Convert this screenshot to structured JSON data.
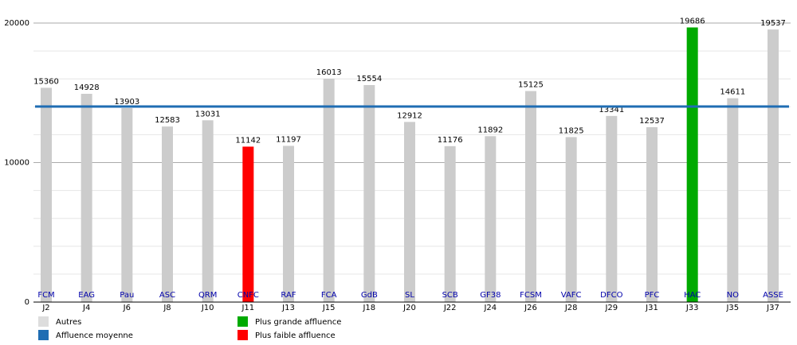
{
  "chart_data": {
    "type": "bar",
    "categories": [
      "J2",
      "J4",
      "J6",
      "J8",
      "J10",
      "J11",
      "J13",
      "J15",
      "J18",
      "J20",
      "J22",
      "J24",
      "J26",
      "J28",
      "J29",
      "J31",
      "J33",
      "J35",
      "J37"
    ],
    "teams": [
      "FCM",
      "EAG",
      "Pau",
      "ASC",
      "QRM",
      "CNFC",
      "RAF",
      "FCA",
      "GdB",
      "SL",
      "SCB",
      "GF38",
      "FCSM",
      "VAFC",
      "DFCO",
      "PFC",
      "HAC",
      "NO",
      "ASSE"
    ],
    "values": [
      15360,
      14928,
      13903,
      12583,
      13031,
      11142,
      11197,
      16013,
      15554,
      12912,
      11176,
      11892,
      15125,
      11825,
      13341,
      12537,
      19686,
      14611,
      19537
    ],
    "colors": [
      "#cccccc",
      "#cccccc",
      "#cccccc",
      "#cccccc",
      "#cccccc",
      "#ff0000",
      "#cccccc",
      "#cccccc",
      "#cccccc",
      "#cccccc",
      "#cccccc",
      "#cccccc",
      "#cccccc",
      "#cccccc",
      "#cccccc",
      "#cccccc",
      "#00aa00",
      "#cccccc",
      "#cccccc"
    ],
    "average": 14019,
    "average_color": "#1f6db3",
    "ylim": [
      0,
      20000
    ],
    "yticks": [
      0,
      10000,
      20000
    ],
    "minor_yticks": [
      2000,
      4000,
      6000,
      8000,
      12000,
      14000,
      16000,
      18000
    ],
    "grid": true,
    "legend": [
      {
        "name": "Autres",
        "color": "#dddddd"
      },
      {
        "name": "Affluence moyenne",
        "color": "#1f6db3"
      },
      {
        "name": "Plus grande affluence",
        "color": "#00aa00"
      },
      {
        "name": "Plus faible affluence",
        "color": "#ff0000"
      }
    ]
  }
}
